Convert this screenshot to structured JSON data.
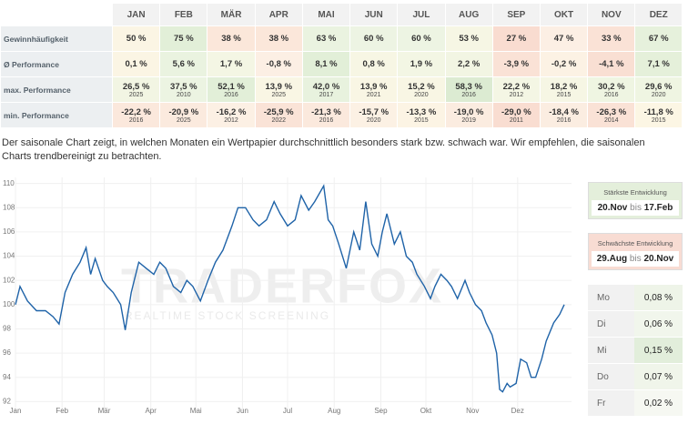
{
  "table": {
    "header": [
      "JAN",
      "FEB",
      "MÄR",
      "APR",
      "MAI",
      "JUN",
      "JUL",
      "AUG",
      "SEP",
      "OKT",
      "NOV",
      "DEZ"
    ],
    "rows": [
      {
        "label": "Gewinnhäufigkeit",
        "cells": [
          {
            "text": "50 %",
            "bg": "#fbf5e4"
          },
          {
            "text": "75 %",
            "bg": "#e2efd8"
          },
          {
            "text": "38 %",
            "bg": "#fbe7da"
          },
          {
            "text": "38 %",
            "bg": "#fbe7da"
          },
          {
            "text": "63 %",
            "bg": "#eaf3e0"
          },
          {
            "text": "60 %",
            "bg": "#edf4e3"
          },
          {
            "text": "60 %",
            "bg": "#edf4e3"
          },
          {
            "text": "53 %",
            "bg": "#f6f6e4"
          },
          {
            "text": "27 %",
            "bg": "#f9dcd0"
          },
          {
            "text": "47 %",
            "bg": "#fcefe4"
          },
          {
            "text": "33 %",
            "bg": "#fae2d6"
          },
          {
            "text": "67 %",
            "bg": "#e6f1dc"
          }
        ]
      },
      {
        "label": "Ø Performance",
        "cells": [
          {
            "text": "0,1 %",
            "bg": "#fbf5e4"
          },
          {
            "text": "5,6 %",
            "bg": "#eaf3e0"
          },
          {
            "text": "1,7 %",
            "bg": "#f4f6e4"
          },
          {
            "text": "-0,8 %",
            "bg": "#fcefe4"
          },
          {
            "text": "8,1 %",
            "bg": "#e2efd8"
          },
          {
            "text": "0,8 %",
            "bg": "#f7f6e4"
          },
          {
            "text": "1,9 %",
            "bg": "#f3f6e4"
          },
          {
            "text": "2,2 %",
            "bg": "#f2f5e3"
          },
          {
            "text": "-3,9 %",
            "bg": "#fae2d6"
          },
          {
            "text": "-0,2 %",
            "bg": "#fcf2e4"
          },
          {
            "text": "-4,1 %",
            "bg": "#f9dfd3"
          },
          {
            "text": "7,1 %",
            "bg": "#e5f0da"
          }
        ]
      },
      {
        "label": "max. Performance",
        "cells": [
          {
            "text": "26,5 %",
            "year": "2025",
            "bg": "#f2f5e3"
          },
          {
            "text": "37,5 %",
            "year": "2010",
            "bg": "#ecf4e2"
          },
          {
            "text": "52,1 %",
            "year": "2016",
            "bg": "#e2efd8"
          },
          {
            "text": "13,9 %",
            "year": "2025",
            "bg": "#f9f6e4"
          },
          {
            "text": "42,0 %",
            "year": "2017",
            "bg": "#e8f2de"
          },
          {
            "text": "13,9 %",
            "year": "2021",
            "bg": "#f9f6e4"
          },
          {
            "text": "15,2 %",
            "year": "2020",
            "bg": "#f8f6e4"
          },
          {
            "text": "58,3 %",
            "year": "2016",
            "bg": "#dcebd2"
          },
          {
            "text": "22,2 %",
            "year": "2012",
            "bg": "#f4f6e4"
          },
          {
            "text": "18,2 %",
            "year": "2015",
            "bg": "#f6f6e4"
          },
          {
            "text": "30,2 %",
            "year": "2016",
            "bg": "#eff5e2"
          },
          {
            "text": "29,6 %",
            "year": "2020",
            "bg": "#eff5e2"
          }
        ]
      },
      {
        "label": "min. Performance",
        "cells": [
          {
            "text": "-22,2 %",
            "year": "2016",
            "bg": "#fbe8dc"
          },
          {
            "text": "-20,9 %",
            "year": "2025",
            "bg": "#fbeade"
          },
          {
            "text": "-16,2 %",
            "year": "2012",
            "bg": "#fcf0e4"
          },
          {
            "text": "-25,9 %",
            "year": "2022",
            "bg": "#fae3d7"
          },
          {
            "text": "-21,3 %",
            "year": "2016",
            "bg": "#fbe9dd"
          },
          {
            "text": "-15,7 %",
            "year": "2020",
            "bg": "#fcf1e4"
          },
          {
            "text": "-13,3 %",
            "year": "2015",
            "bg": "#fcf4e4"
          },
          {
            "text": "-19,0 %",
            "year": "2019",
            "bg": "#fbece0"
          },
          {
            "text": "-29,0 %",
            "year": "2011",
            "bg": "#f9ddd1"
          },
          {
            "text": "-18,4 %",
            "year": "2016",
            "bg": "#fbede1"
          },
          {
            "text": "-26,3 %",
            "year": "2014",
            "bg": "#fae2d6"
          },
          {
            "text": "-11,8 %",
            "year": "2015",
            "bg": "#fcf6e4"
          }
        ]
      }
    ]
  },
  "description": "Der saisonale Chart zeigt, in welchen Monaten ein Wertpapier durchschnittlich besonders stark bzw. schwach war. Wir empfehlen, die saisonalen Charts trendbereinigt zu betrachten.",
  "watermark": {
    "brand": "TRADERFOX",
    "tagline": "REALTIME STOCK SCREENING"
  },
  "chart_data": {
    "type": "line",
    "color": "#1f63a8",
    "grid": true,
    "x": [
      0,
      3,
      8,
      14,
      20,
      25,
      29,
      33,
      38,
      43,
      47,
      50,
      53,
      58,
      61,
      65,
      70,
      73,
      77,
      82,
      87,
      92,
      96,
      100,
      105,
      110,
      114,
      118,
      123,
      128,
      133,
      138,
      144,
      148,
      153,
      158,
      162,
      167,
      172,
      176,
      181,
      186,
      190,
      195,
      199,
      205,
      208,
      211,
      215,
      220,
      225,
      229,
      233,
      237,
      241,
      244,
      247,
      252,
      256,
      260,
      264,
      267,
      272,
      276,
      279,
      283,
      287,
      290,
      294,
      299,
      302,
      306,
      310,
      313,
      317,
      320,
      322,
      324,
      327,
      329,
      333,
      336,
      340,
      343,
      346,
      350,
      353,
      358,
      362,
      365
    ],
    "values": [
      100,
      101.5,
      100.3,
      99.5,
      99.5,
      99,
      98.4,
      101,
      102.5,
      103.5,
      104.7,
      102.5,
      103.8,
      102,
      101.5,
      101,
      100,
      97.9,
      101,
      103.5,
      103,
      102.5,
      103.5,
      103,
      101.5,
      101,
      102,
      101.5,
      100.3,
      102,
      103.5,
      104.5,
      106.5,
      108,
      108,
      107,
      106.5,
      107,
      108.5,
      107.5,
      106.5,
      107,
      109,
      107.8,
      108.5,
      109.8,
      107,
      106.5,
      105,
      103,
      106,
      104.5,
      108.5,
      105,
      104,
      106,
      107.5,
      105,
      106,
      104,
      103.5,
      102.5,
      101.5,
      100.5,
      101.5,
      102.5,
      102,
      101.5,
      100.5,
      102,
      101,
      100,
      99.5,
      98.5,
      97.5,
      96,
      93,
      92.8,
      93.5,
      93.2,
      93.5,
      95.5,
      95.2,
      94,
      94,
      95.5,
      97,
      98.5,
      99.2,
      100
    ],
    "xlim": [
      0,
      365
    ],
    "xticks": [
      {
        "value": 0,
        "label": "Jan"
      },
      {
        "value": 31,
        "label": "Feb"
      },
      {
        "value": 59,
        "label": "Mär"
      },
      {
        "value": 90,
        "label": "Apr"
      },
      {
        "value": 120,
        "label": "Mai"
      },
      {
        "value": 151,
        "label": "Jun"
      },
      {
        "value": 181,
        "label": "Jul"
      },
      {
        "value": 212,
        "label": "Aug"
      },
      {
        "value": 243,
        "label": "Sep"
      },
      {
        "value": 273,
        "label": "Okt"
      },
      {
        "value": 304,
        "label": "Nov"
      },
      {
        "value": 334,
        "label": "Dez"
      }
    ],
    "ylim": [
      91.5,
      110.5
    ],
    "yticks": [
      92,
      94,
      96,
      98,
      100,
      102,
      104,
      106,
      108,
      110
    ]
  },
  "sidebar": {
    "strongest": {
      "title": "Stärkste Entwicklung",
      "from": "20.Nov",
      "sep": "bis",
      "to": "17.Feb"
    },
    "weakest": {
      "title": "Schwächste Entwicklung",
      "from": "29.Aug",
      "sep": "bis",
      "to": "20.Nov"
    },
    "weekdays": [
      {
        "day": "Mo",
        "value": "0,08 %",
        "bg": "#eef4e8"
      },
      {
        "day": "Di",
        "value": "0,06 %",
        "bg": "#f1f6ec"
      },
      {
        "day": "Mi",
        "value": "0,15 %",
        "bg": "#e2eedb"
      },
      {
        "day": "Do",
        "value": "0,07 %",
        "bg": "#f0f5ea"
      },
      {
        "day": "Fr",
        "value": "0,02 %",
        "bg": "#f6f8f2"
      }
    ]
  }
}
